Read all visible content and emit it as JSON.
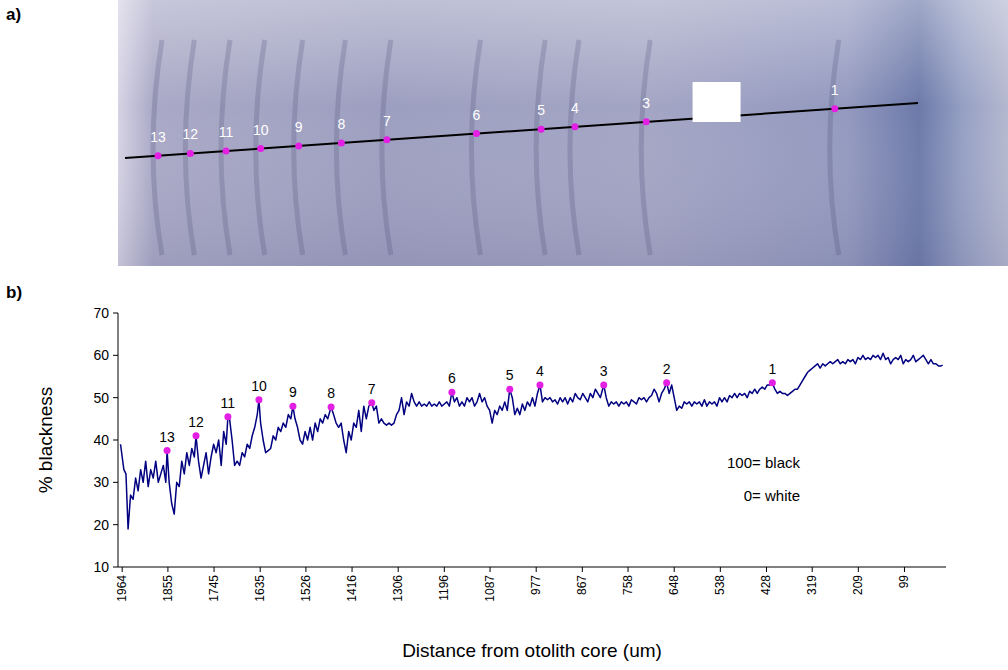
{
  "photo": {
    "letter": "a)",
    "points": [
      {
        "label": "13",
        "distance": 1857
      },
      {
        "label": "12",
        "distance": 1788
      },
      {
        "label": "11",
        "distance": 1712
      },
      {
        "label": "10",
        "distance": 1638
      },
      {
        "label": "9",
        "distance": 1557
      },
      {
        "label": "8",
        "distance": 1466
      },
      {
        "label": "7",
        "distance": 1369
      },
      {
        "label": "6",
        "distance": 1178
      },
      {
        "label": "5",
        "distance": 1040
      },
      {
        "label": "4",
        "distance": 968
      },
      {
        "label": "3",
        "distance": 816
      },
      {
        "label": "1",
        "distance": 414
      }
    ]
  },
  "chart_data": {
    "letter": "b)",
    "type": "line",
    "xlabel": "Distance from otolith core (um)",
    "ylabel": "% blackness",
    "notes": [
      "100= black",
      "0= white"
    ],
    "color": "#000080",
    "grid": false,
    "xlim": [
      1974,
      0
    ],
    "ylim": [
      10,
      70
    ],
    "xticks": [
      1964,
      1855,
      1745,
      1635,
      1526,
      1416,
      1306,
      1196,
      1087,
      977,
      867,
      758,
      648,
      538,
      428,
      319,
      209,
      99
    ],
    "yticks": [
      10,
      20,
      30,
      40,
      50,
      60,
      70
    ],
    "x": [
      1968,
      1960,
      1955,
      1950,
      1944,
      1938,
      1932,
      1926,
      1920,
      1914,
      1908,
      1902,
      1896,
      1890,
      1884,
      1878,
      1872,
      1866,
      1860,
      1857,
      1852,
      1846,
      1840,
      1834,
      1828,
      1822,
      1816,
      1810,
      1804,
      1798,
      1792,
      1788,
      1782,
      1776,
      1770,
      1764,
      1758,
      1752,
      1746,
      1740,
      1734,
      1728,
      1722,
      1716,
      1712,
      1708,
      1702,
      1696,
      1690,
      1684,
      1678,
      1672,
      1666,
      1660,
      1654,
      1648,
      1642,
      1638,
      1634,
      1628,
      1622,
      1616,
      1610,
      1604,
      1598,
      1592,
      1586,
      1580,
      1574,
      1568,
      1562,
      1557,
      1552,
      1546,
      1540,
      1534,
      1528,
      1522,
      1516,
      1510,
      1504,
      1498,
      1492,
      1486,
      1480,
      1474,
      1466,
      1460,
      1454,
      1448,
      1442,
      1436,
      1430,
      1424,
      1418,
      1412,
      1406,
      1400,
      1394,
      1388,
      1382,
      1376,
      1369,
      1364,
      1358,
      1352,
      1346,
      1340,
      1334,
      1328,
      1322,
      1316,
      1310,
      1304,
      1298,
      1292,
      1286,
      1280,
      1274,
      1268,
      1262,
      1256,
      1250,
      1244,
      1238,
      1232,
      1226,
      1220,
      1214,
      1208,
      1202,
      1196,
      1190,
      1184,
      1178,
      1172,
      1166,
      1160,
      1154,
      1148,
      1142,
      1136,
      1130,
      1124,
      1118,
      1112,
      1106,
      1100,
      1094,
      1088,
      1082,
      1076,
      1070,
      1064,
      1058,
      1052,
      1046,
      1040,
      1034,
      1028,
      1022,
      1016,
      1010,
      1004,
      998,
      992,
      986,
      980,
      974,
      968,
      962,
      956,
      950,
      944,
      938,
      932,
      926,
      920,
      914,
      908,
      902,
      896,
      890,
      884,
      878,
      872,
      866,
      860,
      854,
      848,
      842,
      836,
      830,
      824,
      816,
      810,
      804,
      798,
      792,
      786,
      780,
      774,
      768,
      762,
      756,
      750,
      744,
      738,
      732,
      726,
      720,
      714,
      708,
      702,
      696,
      690,
      684,
      678,
      672,
      666,
      660,
      654,
      648,
      642,
      636,
      630,
      624,
      618,
      612,
      606,
      600,
      594,
      588,
      582,
      576,
      570,
      564,
      558,
      552,
      546,
      540,
      534,
      528,
      522,
      516,
      510,
      504,
      498,
      492,
      486,
      480,
      474,
      468,
      462,
      456,
      450,
      444,
      438,
      432,
      426,
      420,
      414,
      408,
      402,
      396,
      390,
      384,
      378,
      372,
      366,
      360,
      354,
      348,
      342,
      336,
      330,
      324,
      318,
      312,
      306,
      300,
      294,
      288,
      282,
      276,
      270,
      264,
      258,
      252,
      246,
      240,
      234,
      228,
      222,
      216,
      210,
      204,
      198,
      192,
      186,
      180,
      174,
      168,
      162,
      156,
      150,
      144,
      138,
      132,
      126,
      120,
      114,
      108,
      102,
      96,
      90,
      84,
      78,
      72,
      66,
      60,
      54,
      48,
      42,
      36,
      30,
      24,
      18,
      12,
      8
    ],
    "values": [
      39,
      33,
      32,
      19,
      27,
      26,
      31,
      28,
      33,
      30,
      35,
      29,
      33,
      31,
      35,
      30,
      32,
      34,
      30,
      37.5,
      30,
      25,
      22.5,
      30,
      29,
      35,
      32,
      37,
      34,
      38,
      36,
      41,
      35,
      31,
      34,
      37,
      32,
      36,
      39,
      37,
      40,
      34,
      42,
      39,
      45.5,
      45,
      40,
      34,
      35,
      34,
      37,
      36,
      39,
      38,
      41,
      43,
      46,
      49.5,
      44,
      40,
      37,
      37.5,
      38,
      41,
      40,
      43,
      42,
      44,
      43,
      46,
      45,
      48,
      45,
      43,
      40,
      39,
      42,
      40,
      43,
      40,
      44,
      42,
      45,
      44,
      46,
      45,
      47.8,
      46,
      44,
      43,
      44,
      40,
      37,
      42,
      40,
      44,
      43,
      47,
      42,
      48,
      45,
      48,
      48.8,
      47,
      48,
      44,
      45,
      44,
      43.5,
      44,
      43.5,
      44,
      46,
      47,
      50,
      46,
      49,
      48,
      51,
      49,
      48,
      49,
      48,
      48.5,
      48,
      49,
      48,
      48.5,
      48,
      49,
      48,
      48.5,
      49,
      48,
      51.3,
      49,
      50,
      48,
      49,
      48,
      50,
      49,
      50,
      48,
      49,
      51,
      49,
      50,
      48,
      47,
      44,
      47,
      46,
      48,
      47,
      49,
      47,
      52,
      50,
      46,
      47.5,
      46,
      48.5,
      47,
      49,
      48,
      50,
      48,
      51,
      53,
      49,
      50,
      49.5,
      50,
      49,
      49.5,
      48.5,
      50,
      49,
      50,
      48.5,
      50,
      49,
      51,
      50,
      49.5,
      51,
      50,
      49,
      51,
      50,
      52,
      51,
      50,
      53,
      50,
      48,
      49,
      48.5,
      49,
      48,
      49,
      48.5,
      49,
      48,
      49.5,
      49,
      48.5,
      50,
      49.5,
      50,
      49,
      50,
      50.5,
      52,
      51,
      49,
      51,
      52,
      53.5,
      51,
      53,
      50,
      47,
      48,
      47.5,
      49,
      48.5,
      49,
      48,
      49,
      48.5,
      49,
      48,
      49.5,
      48,
      49,
      48.5,
      49,
      48,
      50,
      49,
      50,
      49,
      50.5,
      50,
      51,
      50,
      51,
      50.5,
      51,
      50,
      51.5,
      51,
      52,
      51,
      52,
      52.5,
      52,
      53,
      53,
      53.5,
      52,
      51,
      51.5,
      51,
      51,
      50.5,
      51,
      51.5,
      52,
      52,
      53,
      54,
      55,
      56,
      56.5,
      57,
      57.5,
      58,
      57,
      58,
      57.5,
      58,
      58.5,
      58,
      58.5,
      59,
      58,
      58.5,
      58,
      59,
      58.5,
      59,
      58,
      59.5,
      59,
      60,
      59,
      59.5,
      59,
      60,
      59.5,
      60,
      59,
      60.5,
      59,
      59.5,
      58,
      59,
      59.5,
      59,
      60,
      58,
      59,
      58.5,
      59,
      60,
      58.5,
      59,
      59.5,
      60,
      59,
      58,
      59,
      58,
      58,
      57.5,
      57.5,
      57.7
    ],
    "annotations": [
      {
        "label": "13",
        "x": 1857,
        "y": 37.5
      },
      {
        "label": "12",
        "x": 1788,
        "y": 41
      },
      {
        "label": "11",
        "x": 1712,
        "y": 45.5
      },
      {
        "label": "10",
        "x": 1638,
        "y": 49.5
      },
      {
        "label": "9",
        "x": 1557,
        "y": 48
      },
      {
        "label": "8",
        "x": 1466,
        "y": 47.8
      },
      {
        "label": "7",
        "x": 1369,
        "y": 48.8
      },
      {
        "label": "6",
        "x": 1178,
        "y": 51.3
      },
      {
        "label": "5",
        "x": 1040,
        "y": 52
      },
      {
        "label": "4",
        "x": 968,
        "y": 53
      },
      {
        "label": "3",
        "x": 816,
        "y": 53
      },
      {
        "label": "2",
        "x": 666,
        "y": 53.5
      },
      {
        "label": "1",
        "x": 414,
        "y": 53.5
      }
    ],
    "marker_color": "#e41fe4"
  }
}
